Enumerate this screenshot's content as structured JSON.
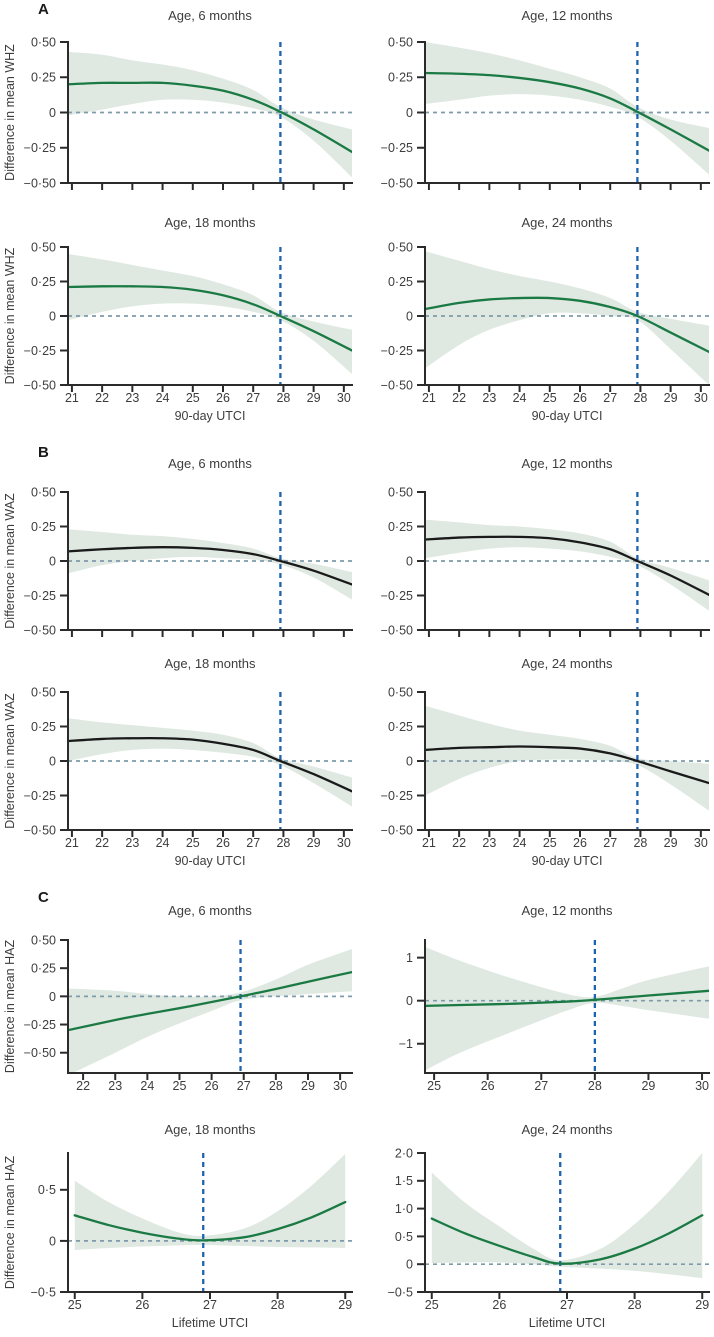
{
  "chart_data": {
    "type": "line",
    "description": "Smoothed exposure-response curves with 95% CI bands: difference in mean child anthropometric z-scores versus UTCI heat index, by child age",
    "colors": {
      "band": "#dfe9e1",
      "vline": "#1f63ad",
      "hline": "#7f9bab",
      "axis": "#2b2b2b",
      "text": "#3d3d3d",
      "green_line": "#1b7a44",
      "black_line": "#1a1a1a"
    },
    "x_domains": {
      "AB": {
        "min": 20.87,
        "max": 30.27,
        "ticks": [
          21,
          22,
          23,
          24,
          25,
          26,
          27,
          28,
          29,
          30
        ]
      },
      "C6": {
        "min": 21.53,
        "max": 30.37,
        "ticks": [
          22,
          23,
          24,
          25,
          26,
          27,
          28,
          29,
          30
        ]
      },
      "C12": {
        "min": 24.83,
        "max": 30.13,
        "ticks": [
          25,
          26,
          27,
          28,
          29,
          30
        ]
      },
      "C1824": {
        "min": 24.9,
        "max": 29.1,
        "ticks": [
          25,
          26,
          27,
          28,
          29
        ]
      }
    },
    "y_scales": {
      "AB": {
        "min": -0.5,
        "max": 0.5,
        "ticks": [
          [
            0.5,
            "0·50"
          ],
          [
            0.25,
            "0·25"
          ],
          [
            0,
            "0"
          ],
          [
            -0.25,
            "−0·25"
          ],
          [
            -0.5,
            "−0·50"
          ]
        ]
      },
      "C6": {
        "min": -0.68,
        "max": 0.5,
        "ticks": [
          [
            0.5,
            "0·50"
          ],
          [
            0.25,
            "0·25"
          ],
          [
            0,
            "0"
          ],
          [
            -0.25,
            "−0·25"
          ],
          [
            -0.5,
            "−0·50"
          ]
        ]
      },
      "C12": {
        "min": -1.68,
        "max": 1.41,
        "ticks": [
          [
            1,
            "1"
          ],
          [
            0,
            "0"
          ],
          [
            -1,
            "−1"
          ]
        ]
      },
      "C18": {
        "min": -0.5,
        "max": 0.86,
        "ticks": [
          [
            0.5,
            "0·5"
          ],
          [
            0,
            "0"
          ],
          [
            -0.5,
            "−0·5"
          ]
        ]
      },
      "C24": {
        "min": -0.5,
        "max": 2.0,
        "ticks": [
          [
            2,
            "2·0"
          ],
          [
            1.5,
            "1·5"
          ],
          [
            1,
            "1·0"
          ],
          [
            0.5,
            "0·5"
          ],
          [
            0,
            "0"
          ],
          [
            -0.5,
            "−0·5"
          ]
        ]
      }
    },
    "panels": [
      {
        "letter": "A",
        "y_axis_title": "Difference in mean WHZ",
        "x_axis_title": "90-day UTCI",
        "line_color": "#1b7a44",
        "subplots": [
          {
            "title": "Age, 6 months",
            "x": "AB",
            "y": "AB",
            "vline": 27.9,
            "points": [
              [
                20.87,
                0.2,
                -0.02,
                0.43
              ],
              [
                22,
                0.21,
                0.02,
                0.41
              ],
              [
                23,
                0.21,
                0.06,
                0.37
              ],
              [
                24,
                0.21,
                0.09,
                0.34
              ],
              [
                25,
                0.19,
                0.09,
                0.3
              ],
              [
                26,
                0.155,
                0.07,
                0.24
              ],
              [
                27,
                0.09,
                0.03,
                0.16
              ],
              [
                27.9,
                0.005,
                -0.03,
                0.04
              ],
              [
                29,
                -0.12,
                -0.2,
                -0.05
              ],
              [
                30.27,
                -0.28,
                -0.46,
                -0.12
              ]
            ]
          },
          {
            "title": "Age, 12 months",
            "x": "AB",
            "y": "AB",
            "vline": 27.9,
            "points": [
              [
                20.87,
                0.28,
                0.06,
                0.5
              ],
              [
                22,
                0.275,
                0.09,
                0.46
              ],
              [
                23,
                0.265,
                0.12,
                0.42
              ],
              [
                24,
                0.245,
                0.13,
                0.37
              ],
              [
                25,
                0.215,
                0.12,
                0.31
              ],
              [
                26,
                0.17,
                0.09,
                0.25
              ],
              [
                27,
                0.1,
                0.04,
                0.17
              ],
              [
                27.9,
                0.005,
                -0.03,
                0.04
              ],
              [
                29,
                -0.12,
                -0.2,
                -0.05
              ],
              [
                30.27,
                -0.27,
                -0.44,
                -0.11
              ]
            ]
          },
          {
            "title": "Age, 18 months",
            "x": "AB",
            "y": "AB",
            "vline": 27.9,
            "points": [
              [
                20.87,
                0.21,
                -0.03,
                0.45
              ],
              [
                22,
                0.215,
                0.03,
                0.41
              ],
              [
                23,
                0.215,
                0.07,
                0.37
              ],
              [
                24,
                0.21,
                0.09,
                0.33
              ],
              [
                25,
                0.19,
                0.09,
                0.29
              ],
              [
                26,
                0.15,
                0.07,
                0.23
              ],
              [
                27,
                0.085,
                0.03,
                0.15
              ],
              [
                27.9,
                0.0,
                -0.03,
                0.03
              ],
              [
                29,
                -0.11,
                -0.18,
                -0.04
              ],
              [
                30.27,
                -0.25,
                -0.42,
                -0.1
              ]
            ]
          },
          {
            "title": "Age, 24 months",
            "x": "AB",
            "y": "AB",
            "vline": 27.9,
            "points": [
              [
                20.87,
                0.05,
                -0.38,
                0.47
              ],
              [
                22,
                0.095,
                -0.21,
                0.4
              ],
              [
                23,
                0.12,
                -0.1,
                0.34
              ],
              [
                24,
                0.13,
                -0.03,
                0.29
              ],
              [
                25,
                0.13,
                0.02,
                0.25
              ],
              [
                26,
                0.11,
                0.02,
                0.2
              ],
              [
                27,
                0.065,
                0.0,
                0.13
              ],
              [
                27.9,
                0.0,
                -0.03,
                0.03
              ],
              [
                29,
                -0.12,
                -0.24,
                -0.02
              ],
              [
                30.27,
                -0.26,
                -0.5,
                -0.07
              ]
            ]
          }
        ]
      },
      {
        "letter": "B",
        "y_axis_title": "Difference in mean WAZ",
        "x_axis_title": "90-day UTCI",
        "line_color": "#1a1a1a",
        "subplots": [
          {
            "title": "Age, 6 months",
            "x": "AB",
            "y": "AB",
            "vline": 27.9,
            "points": [
              [
                20.87,
                0.07,
                -0.09,
                0.23
              ],
              [
                22,
                0.085,
                -0.03,
                0.21
              ],
              [
                23,
                0.095,
                0.0,
                0.19
              ],
              [
                24,
                0.1,
                0.02,
                0.18
              ],
              [
                25,
                0.095,
                0.03,
                0.16
              ],
              [
                26,
                0.08,
                0.02,
                0.13
              ],
              [
                27,
                0.05,
                0.01,
                0.09
              ],
              [
                27.9,
                0.0,
                -0.025,
                0.02
              ],
              [
                29,
                -0.07,
                -0.12,
                -0.02
              ],
              [
                30.27,
                -0.17,
                -0.28,
                -0.08
              ]
            ]
          },
          {
            "title": "Age, 12 months",
            "x": "AB",
            "y": "AB",
            "vline": 27.9,
            "points": [
              [
                20.87,
                0.155,
                0.02,
                0.3
              ],
              [
                22,
                0.17,
                0.06,
                0.28
              ],
              [
                23,
                0.175,
                0.09,
                0.26
              ],
              [
                24,
                0.175,
                0.1,
                0.25
              ],
              [
                25,
                0.165,
                0.09,
                0.23
              ],
              [
                26,
                0.135,
                0.07,
                0.2
              ],
              [
                27,
                0.085,
                0.03,
                0.14
              ],
              [
                27.9,
                0.0,
                -0.03,
                0.02
              ],
              [
                29,
                -0.105,
                -0.17,
                -0.05
              ],
              [
                30.27,
                -0.245,
                -0.36,
                -0.14
              ]
            ]
          },
          {
            "title": "Age, 18 months",
            "x": "AB",
            "y": "AB",
            "vline": 27.9,
            "points": [
              [
                20.87,
                0.145,
                0.0,
                0.31
              ],
              [
                22,
                0.16,
                0.05,
                0.28
              ],
              [
                23,
                0.165,
                0.08,
                0.26
              ],
              [
                24,
                0.165,
                0.09,
                0.24
              ],
              [
                25,
                0.155,
                0.08,
                0.22
              ],
              [
                26,
                0.125,
                0.06,
                0.19
              ],
              [
                27,
                0.08,
                0.03,
                0.13
              ],
              [
                27.9,
                0.0,
                -0.03,
                0.02
              ],
              [
                29,
                -0.095,
                -0.16,
                -0.04
              ],
              [
                30.27,
                -0.22,
                -0.33,
                -0.12
              ]
            ]
          },
          {
            "title": "Age, 24 months",
            "x": "AB",
            "y": "AB",
            "vline": 27.9,
            "points": [
              [
                20.87,
                0.08,
                -0.25,
                0.4
              ],
              [
                22,
                0.095,
                -0.13,
                0.33
              ],
              [
                23,
                0.1,
                -0.05,
                0.27
              ],
              [
                24,
                0.105,
                0.0,
                0.22
              ],
              [
                25,
                0.1,
                0.01,
                0.19
              ],
              [
                26,
                0.09,
                0.01,
                0.16
              ],
              [
                27,
                0.055,
                0.0,
                0.11
              ],
              [
                27.9,
                0.0,
                -0.03,
                0.02
              ],
              [
                29,
                -0.075,
                -0.17,
                0.0
              ],
              [
                30.27,
                -0.16,
                -0.36,
                -0.02
              ]
            ]
          }
        ]
      },
      {
        "letter": "C",
        "y_axis_title": "Difference in mean HAZ",
        "x_axis_title": "Lifetime UTCI",
        "line_color": "#1b7a44",
        "subplots": [
          {
            "title": "Age, 6 months",
            "x": "C6",
            "y": "C6",
            "vline": 26.9,
            "points": [
              [
                21.53,
                -0.3,
                -0.7,
                0.07
              ],
              [
                23,
                -0.21,
                -0.5,
                0.05
              ],
              [
                24,
                -0.155,
                -0.36,
                0.02
              ],
              [
                25,
                -0.105,
                -0.24,
                0.0
              ],
              [
                26,
                -0.05,
                -0.13,
                0.0
              ],
              [
                26.9,
                0.0,
                -0.035,
                0.035
              ],
              [
                28,
                0.065,
                0.0,
                0.15
              ],
              [
                29,
                0.13,
                0.02,
                0.28
              ],
              [
                30.37,
                0.215,
                0.045,
                0.42
              ]
            ]
          },
          {
            "title": "Age, 12 months",
            "x": "C12",
            "y": "C12",
            "vline": 28.0,
            "points": [
              [
                24.83,
                -0.12,
                -1.62,
                1.25
              ],
              [
                25.5,
                -0.1,
                -1.2,
                0.92
              ],
              [
                26.5,
                -0.07,
                -0.7,
                0.5
              ],
              [
                27.5,
                -0.02,
                -0.22,
                0.15
              ],
              [
                28,
                0.02,
                -0.05,
                0.09
              ],
              [
                28.5,
                0.07,
                -0.12,
                0.28
              ],
              [
                29,
                0.12,
                -0.22,
                0.48
              ],
              [
                30.13,
                0.23,
                -0.42,
                0.8
              ]
            ]
          },
          {
            "title": "Age, 18 months",
            "x": "C1824",
            "y": "C18",
            "vline": 26.9,
            "points": [
              [
                25,
                0.25,
                -0.09,
                0.59
              ],
              [
                25.5,
                0.155,
                -0.07,
                0.38
              ],
              [
                26,
                0.08,
                -0.055,
                0.22
              ],
              [
                26.5,
                0.025,
                -0.045,
                0.09
              ],
              [
                26.9,
                0.005,
                -0.04,
                0.05
              ],
              [
                27.5,
                0.035,
                -0.05,
                0.12
              ],
              [
                28,
                0.115,
                -0.06,
                0.29
              ],
              [
                28.5,
                0.23,
                -0.065,
                0.54
              ],
              [
                29,
                0.38,
                -0.07,
                0.85
              ]
            ]
          },
          {
            "title": "Age, 24 months",
            "x": "C1824",
            "y": "C24",
            "vline": 26.9,
            "points": [
              [
                25,
                0.82,
                0.02,
                1.65
              ],
              [
                25.5,
                0.55,
                0.03,
                1.1
              ],
              [
                26,
                0.33,
                0.03,
                0.68
              ],
              [
                26.5,
                0.13,
                0.0,
                0.28
              ],
              [
                26.9,
                0.01,
                -0.045,
                0.07
              ],
              [
                27.5,
                0.09,
                -0.08,
                0.28
              ],
              [
                28,
                0.28,
                -0.12,
                0.72
              ],
              [
                28.5,
                0.55,
                -0.18,
                1.3
              ],
              [
                29,
                0.88,
                -0.25,
                2.0
              ]
            ]
          }
        ]
      }
    ]
  }
}
